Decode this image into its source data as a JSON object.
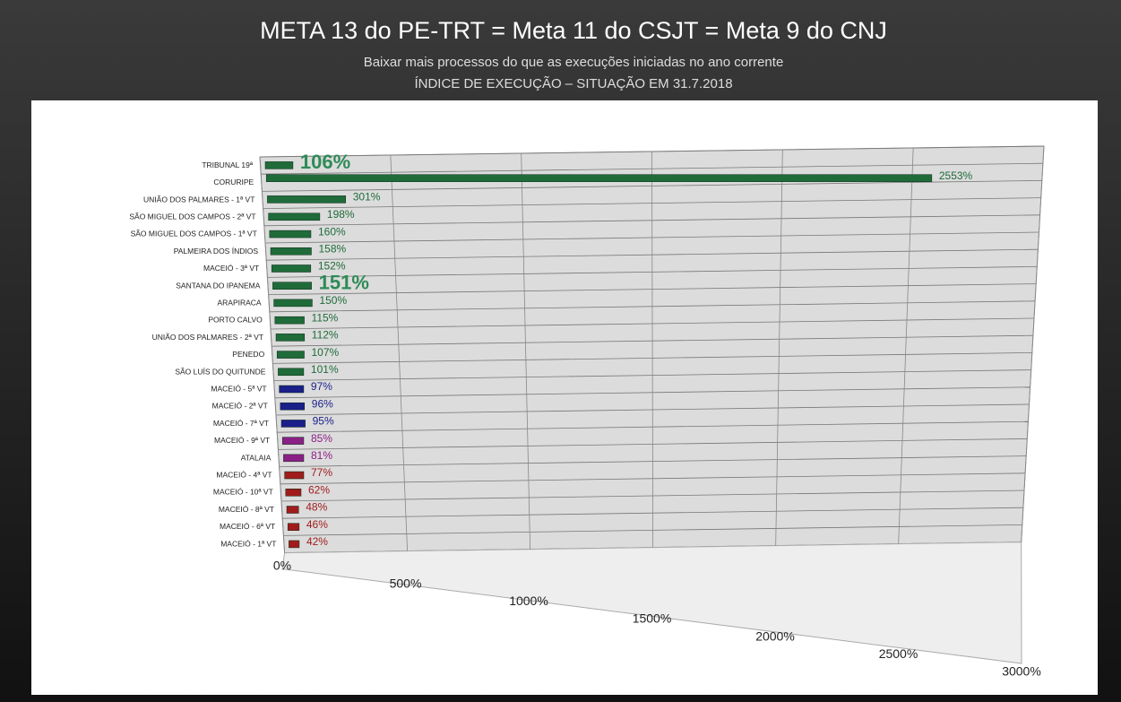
{
  "chart_data": {
    "type": "bar",
    "orientation": "horizontal",
    "title": "META 13 do PE-TRT = Meta 11 do CSJT = Meta 9 do CNJ",
    "subtitle": "Baixar mais processos do que as execuções iniciadas no ano corrente",
    "subtitle2": "ÍNDICE DE EXECUÇÃO – SITUAÇÃO EM 31.7.2018",
    "categories": [
      "TRIBUNAL 19ª",
      "CORURIPE",
      "UNIÃO DOS PALMARES - 1ª VT",
      "SÃO MIGUEL DOS CAMPOS - 2ª VT",
      "SÃO MIGUEL DOS CAMPOS - 1ª VT",
      "PALMEIRA DOS ÍNDIOS",
      "MACEIÓ - 3ª VT",
      "SANTANA DO IPANEMA",
      "ARAPIRACA",
      "PORTO CALVO",
      "UNIÃO DOS PALMARES - 2ª VT",
      "PENEDO",
      "SÃO LUÍS DO QUITUNDE",
      "MACEIÓ - 5ª VT",
      "MACEIÓ - 2ª VT",
      "MACEIÓ - 7ª VT",
      "MACEIÓ - 9ª VT",
      "ATALAIA",
      "MACEIÓ - 4ª VT",
      "MACEIÓ - 10ª VT",
      "MACEIÓ - 8ª VT",
      "MACEIÓ - 6ª VT",
      "MACEIÓ - 1ª VT"
    ],
    "values": [
      106,
      2553,
      301,
      198,
      160,
      158,
      152,
      151,
      150,
      115,
      112,
      107,
      101,
      97,
      96,
      95,
      85,
      81,
      77,
      62,
      48,
      46,
      42
    ],
    "value_labels": [
      "106%",
      "2553%",
      "301%",
      "198%",
      "160%",
      "158%",
      "152%",
      "151%",
      "150%",
      "115%",
      "112%",
      "107%",
      "101%",
      "97%",
      "96%",
      "95%",
      "85%",
      "81%",
      "77%",
      "62%",
      "48%",
      "46%",
      "42%"
    ],
    "emphasis": [
      true,
      false,
      false,
      false,
      false,
      false,
      false,
      true,
      false,
      false,
      false,
      false,
      false,
      false,
      false,
      false,
      false,
      false,
      false,
      false,
      false,
      false,
      false
    ],
    "colors": [
      "#1f6b3a",
      "#1f6b3a",
      "#1f6b3a",
      "#1f6b3a",
      "#1f6b3a",
      "#1f6b3a",
      "#1f6b3a",
      "#1f6b3a",
      "#1f6b3a",
      "#1f6b3a",
      "#1f6b3a",
      "#1f6b3a",
      "#1f6b3a",
      "#1b1f8a",
      "#1b1f8a",
      "#1b1f8a",
      "#8a1f86",
      "#8a1f86",
      "#a01c1c",
      "#a01c1c",
      "#a01c1c",
      "#a01c1c",
      "#a01c1c"
    ],
    "xlim": [
      0,
      3000
    ],
    "xticks": [
      {
        "value": 0,
        "label": "0%"
      },
      {
        "value": 500,
        "label": "500%"
      },
      {
        "value": 1000,
        "label": "1000%"
      },
      {
        "value": 1500,
        "label": "1500%"
      },
      {
        "value": 2000,
        "label": "2000%"
      },
      {
        "value": 2500,
        "label": "2500%"
      },
      {
        "value": 3000,
        "label": "3000%"
      }
    ],
    "grid": true
  }
}
